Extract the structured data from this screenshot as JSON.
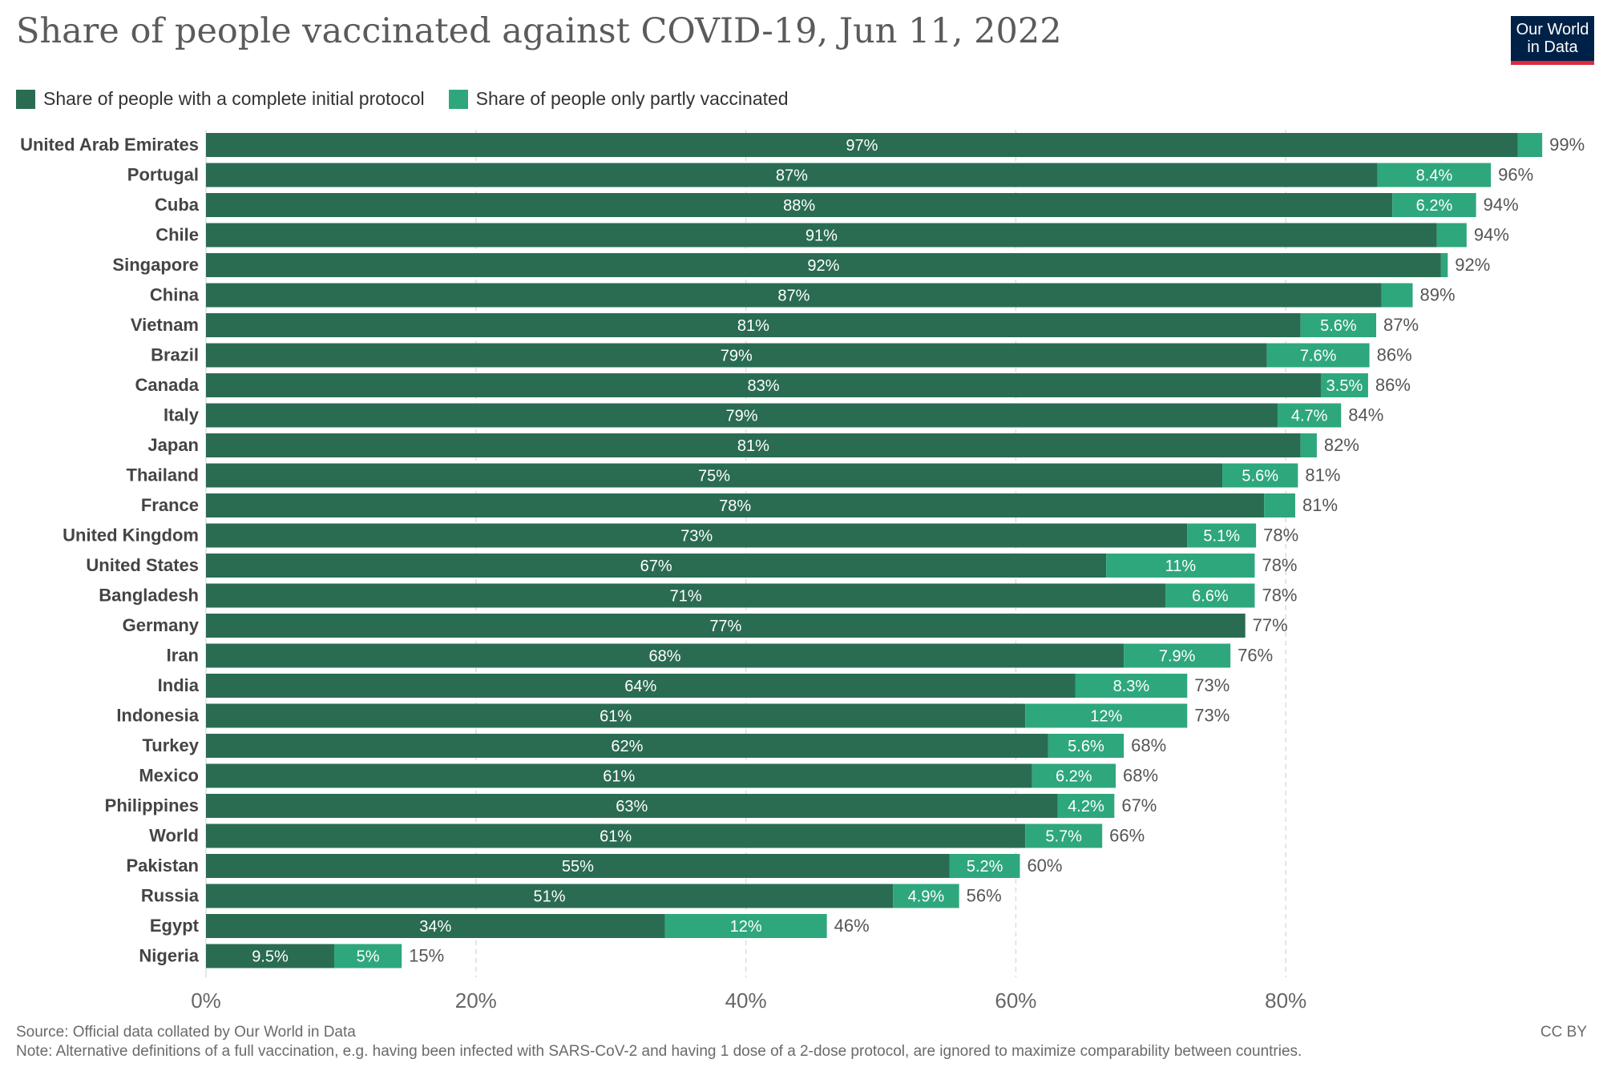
{
  "title": "Share of people vaccinated against COVID-19, Jun 11, 2022",
  "logo": {
    "line1": "Our World",
    "line2": "in Data"
  },
  "source": "Source: Official data collated by Our World in Data",
  "note": "Note: Alternative definitions of a full vaccination, e.g. having been infected with SARS-CoV-2 and having 1 dose of a 2-dose protocol, are ignored to maximize comparability between countries.",
  "license": "CC BY",
  "colors": {
    "complete": "#2a6c52",
    "partial": "#2ea77d",
    "grid": "#dddddd",
    "text": "#333333",
    "muted": "#666666"
  },
  "chart_data": {
    "type": "bar",
    "orientation": "horizontal",
    "stacked": true,
    "title": "Share of people vaccinated against COVID-19, Jun 11, 2022",
    "xlim": [
      0,
      100
    ],
    "xticks": [
      0,
      20,
      40,
      60,
      80
    ],
    "xtick_labels": [
      "0%",
      "20%",
      "40%",
      "60%",
      "80%"
    ],
    "grid": "vertical dashed",
    "legend_position": "top-left",
    "categories": [
      "United Arab Emirates",
      "Portugal",
      "Cuba",
      "Chile",
      "Singapore",
      "China",
      "Vietnam",
      "Brazil",
      "Canada",
      "Italy",
      "Japan",
      "Thailand",
      "France",
      "United Kingdom",
      "United States",
      "Bangladesh",
      "Germany",
      "Iran",
      "India",
      "Indonesia",
      "Turkey",
      "Mexico",
      "Philippines",
      "World",
      "Pakistan",
      "Russia",
      "Egypt",
      "Nigeria"
    ],
    "series": [
      {
        "name": "Share of people with a complete initial protocol",
        "values": [
          97.2,
          86.8,
          87.9,
          91.2,
          91.5,
          87.1,
          81.1,
          78.6,
          82.6,
          79.4,
          81.1,
          75.3,
          78.4,
          72.7,
          66.7,
          71.1,
          77.0,
          68.0,
          64.4,
          60.7,
          62.4,
          61.2,
          63.1,
          60.7,
          55.1,
          50.9,
          34.0,
          9.5
        ],
        "labels": [
          "97%",
          "87%",
          "88%",
          "91%",
          "92%",
          "87%",
          "81%",
          "79%",
          "83%",
          "79%",
          "81%",
          "75%",
          "78%",
          "73%",
          "67%",
          "71%",
          "77%",
          "68%",
          "64%",
          "61%",
          "62%",
          "61%",
          "63%",
          "61%",
          "55%",
          "51%",
          "34%",
          "9.5%"
        ]
      },
      {
        "name": "Share of people only partly vaccinated",
        "values": [
          1.8,
          8.4,
          6.2,
          2.2,
          0.5,
          2.3,
          5.6,
          7.6,
          3.5,
          4.7,
          1.2,
          5.6,
          2.3,
          5.1,
          11.0,
          6.6,
          0.0,
          7.9,
          8.3,
          12.0,
          5.6,
          6.2,
          4.2,
          5.7,
          5.2,
          4.9,
          12.0,
          5.0
        ],
        "labels": [
          "",
          "8.4%",
          "6.2%",
          "",
          "",
          "",
          "5.6%",
          "7.6%",
          "3.5%",
          "4.7%",
          "",
          "5.6%",
          "",
          "5.1%",
          "11%",
          "6.6%",
          "",
          "7.9%",
          "8.3%",
          "12%",
          "5.6%",
          "6.2%",
          "4.2%",
          "5.7%",
          "5.2%",
          "4.9%",
          "12%",
          "5%"
        ]
      }
    ],
    "total_labels": [
      "99%",
      "96%",
      "94%",
      "94%",
      "92%",
      "89%",
      "87%",
      "86%",
      "86%",
      "84%",
      "82%",
      "81%",
      "81%",
      "78%",
      "78%",
      "78%",
      "77%",
      "76%",
      "73%",
      "73%",
      "68%",
      "68%",
      "67%",
      "66%",
      "60%",
      "56%",
      "46%",
      "15%"
    ]
  }
}
